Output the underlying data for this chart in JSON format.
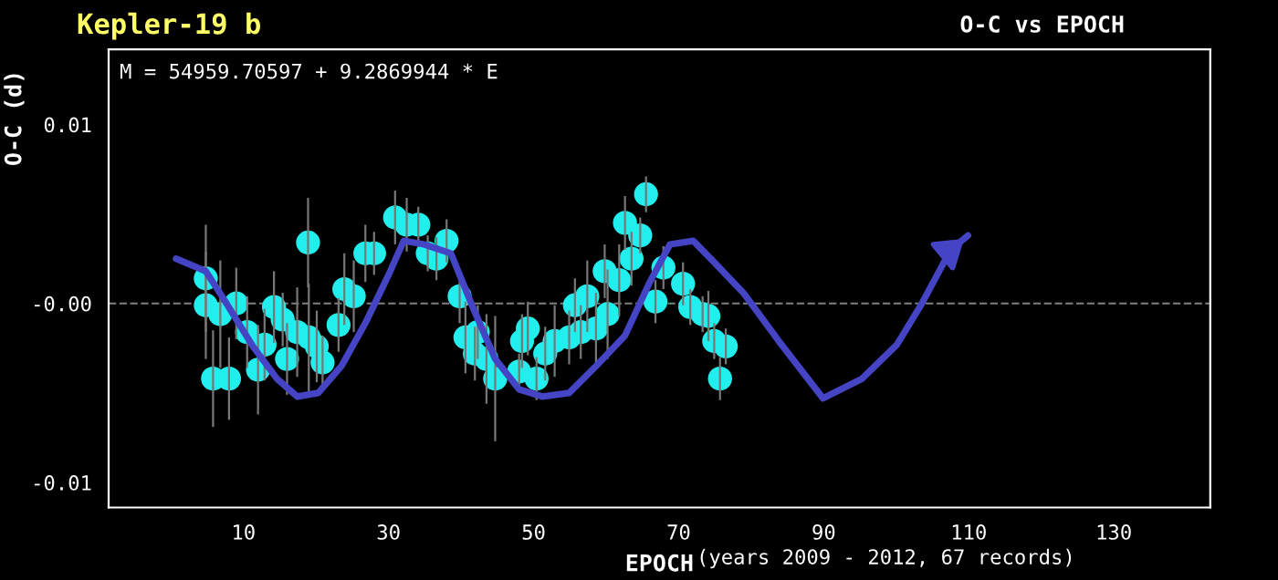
{
  "chart_data": {
    "type": "scatter",
    "title": "Kepler-19 b",
    "subtitle": "O-C vs EPOCH",
    "xlabel": "EPOCH",
    "ylabel": "O-C (d)",
    "annotations": [
      "M = 54959.70597 + 9.2869944 * E",
      "(years 2009 - 2012, 67 records)"
    ],
    "xlim": [
      -8.6,
      143.3
    ],
    "ylim": [
      -0.0114,
      0.0142
    ],
    "xticks": [
      10,
      30,
      50,
      70,
      90,
      110,
      130
    ],
    "yticks": [
      {
        "value": -0.01,
        "label": "-0.01"
      },
      {
        "value": 0,
        "label": "-0.00"
      },
      {
        "value": 0.01,
        "label": "0.01"
      }
    ],
    "grid": false,
    "marker": "circle",
    "ref_lines": [
      {
        "axis": "y",
        "value": 0,
        "color": "#808080",
        "line_style": "dashed"
      }
    ],
    "series": [
      {
        "color": "#22eeee",
        "x": [
          4.8,
          4.8,
          6.8,
          9.0,
          10.5,
          5.8,
          8.0,
          12.0,
          12.9,
          14.2,
          15.4,
          16.0,
          17.4,
          19.0,
          20.1,
          20.9,
          18.9,
          23.1,
          23.9,
          25.2,
          26.8,
          28.0,
          30.9,
          32.5,
          34.1,
          35.4,
          36.6,
          38.0,
          39.8,
          40.6,
          42.3,
          41.9,
          43.5,
          44.7,
          48.0,
          49.2,
          48.4,
          50.4,
          51.6,
          52.9,
          54.9,
          55.7,
          57.4,
          56.5,
          58.6,
          60.2,
          59.8,
          61.8,
          62.6,
          64.7,
          63.5,
          65.5,
          66.8,
          67.9,
          70.6,
          71.6,
          73.3,
          74.1,
          74.9,
          76.5,
          75.7
        ],
        "values": [
          0.0014,
          -0.0001,
          -0.0006,
          0.0,
          -0.0016,
          -0.0042,
          -0.0042,
          -0.0037,
          -0.0023,
          -0.0002,
          -0.0009,
          -0.0031,
          -0.0016,
          -0.0019,
          -0.0024,
          -0.0033,
          0.0034,
          -0.0012,
          0.0008,
          0.0004,
          0.0028,
          0.0028,
          0.0048,
          0.0044,
          0.0044,
          0.0028,
          0.0025,
          0.0035,
          0.0004,
          -0.0019,
          -0.0016,
          -0.0028,
          -0.0031,
          -0.0042,
          -0.0038,
          -0.0014,
          -0.0021,
          -0.0042,
          -0.0028,
          -0.0021,
          -0.0019,
          -0.0001,
          0.0004,
          -0.0016,
          -0.0014,
          -0.0006,
          0.0018,
          0.0013,
          0.0045,
          0.0038,
          0.0025,
          0.0061,
          0.0001,
          0.002,
          0.0011,
          -0.0002,
          -0.0006,
          -0.0007,
          -0.0021,
          -0.0024,
          -0.0042
        ],
        "errors": [
          0.003,
          0.003,
          0.003,
          0.002,
          0.002,
          0.0027,
          0.0023,
          0.0025,
          0.002,
          0.002,
          0.0015,
          0.002,
          0.0025,
          0.003,
          0.002,
          0.0015,
          0.0025,
          0.0015,
          0.002,
          0.002,
          0.0016,
          0.0012,
          0.0015,
          0.0015,
          0.001,
          0.001,
          0.0012,
          0.0012,
          0.0015,
          0.002,
          0.0015,
          0.0015,
          0.0025,
          0.0035,
          0.001,
          0.0015,
          0.0015,
          0.0012,
          0.0015,
          0.002,
          0.0015,
          0.0015,
          0.002,
          0.0015,
          0.002,
          0.0025,
          0.0015,
          0.002,
          0.0015,
          0.001,
          0.0015,
          0.001,
          0.0012,
          0.0012,
          0.0012,
          0.001,
          0.001,
          0.0014,
          0.001,
          0.001,
          0.0012
        ]
      },
      {
        "type": "line",
        "color": "#4444c4",
        "marker": "none",
        "line_style": "solid",
        "x": [
          0.7,
          4.8,
          7.2,
          11.3,
          14.6,
          17.4,
          20.3,
          23.5,
          26.8,
          30.0,
          32.1,
          34.9,
          38.6,
          41.5,
          44.7,
          48.0,
          51.2,
          54.9,
          58.6,
          62.6,
          65.9,
          68.8,
          72.0,
          74.9,
          78.9,
          83.8,
          89.9,
          95.3,
          100.1,
          103.4,
          107.5,
          109.9
        ],
        "values": [
          0.0025,
          0.0018,
          0.0003,
          -0.0024,
          -0.0042,
          -0.0052,
          -0.005,
          -0.0035,
          -0.0011,
          0.0016,
          0.0035,
          0.0033,
          0.0028,
          -0.0001,
          -0.0031,
          -0.0048,
          -0.0052,
          -0.005,
          -0.0035,
          -0.0018,
          0.0011,
          0.0033,
          0.0035,
          0.0023,
          0.0006,
          -0.0021,
          -0.0053,
          -0.0042,
          -0.0023,
          -0.0001,
          0.003,
          0.0038
        ]
      }
    ]
  }
}
